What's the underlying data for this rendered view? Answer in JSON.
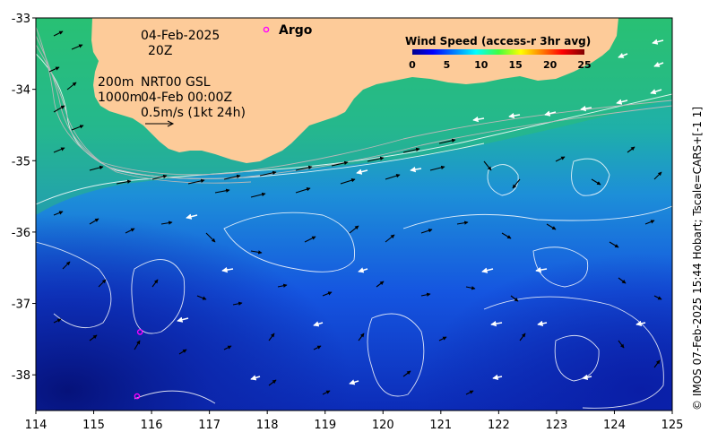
{
  "date": "04-Feb-2025",
  "time": "20Z",
  "depth_shallow": "200m",
  "depth_deep": "1000m",
  "product": "NRT00 GSL",
  "product_time": "04-Feb 00:00Z",
  "scale_label": "0.5m/s (1kt 24h)",
  "argo_label": "Argo",
  "colorbar": {
    "title": "Wind Speed (access-r 3hr avg)",
    "ticks": [
      "0",
      "5",
      "10",
      "15",
      "20",
      "25"
    ],
    "range": [
      0,
      25
    ]
  },
  "x_axis": {
    "range": [
      114,
      125
    ],
    "ticks": [
      "114",
      "115",
      "116",
      "117",
      "118",
      "119",
      "120",
      "121",
      "122",
      "123",
      "124",
      "125"
    ]
  },
  "y_axis": {
    "range": [
      -38.5,
      -33
    ],
    "ticks": [
      "-33",
      "-34",
      "-35",
      "-36",
      "-37",
      "-38"
    ]
  },
  "credit": "© IMOS 07-Feb-2025 15:44 Hobart; Tscale=CARS+[-1 1]",
  "argo_floats": [
    {
      "lon": 115.8,
      "lat": -37.4
    },
    {
      "lon": 115.75,
      "lat": -38.3
    }
  ],
  "colors": {
    "land": "#fdcb99",
    "argo": "#ff00ff",
    "deep_water": "#0a1fa0",
    "shelf_water": "#24c078"
  }
}
